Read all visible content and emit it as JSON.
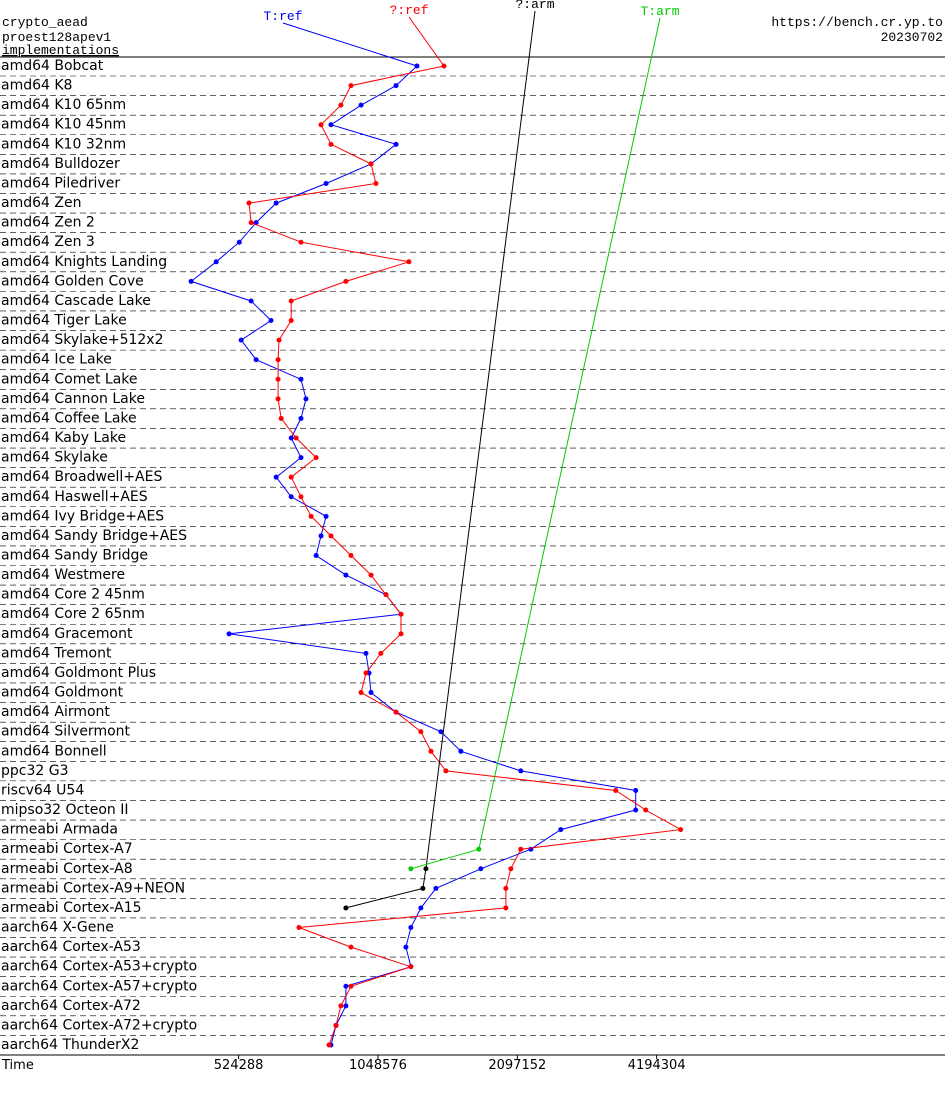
{
  "chart_data": {
    "type": "line",
    "title": "crypto_aead",
    "subtitle": "proest128apev1",
    "annotations": [
      "implementations",
      "https://bench.cr.yp.to",
      "20230702"
    ],
    "x_label": "Time",
    "xscale": "log",
    "xlim": [
      160000,
      17600000
    ],
    "xticks": [
      524288,
      1048576,
      2097152,
      4194304
    ],
    "categories": [
      "amd64 Bobcat",
      "amd64 K8",
      "amd64 K10 65nm",
      "amd64 K10 45nm",
      "amd64 K10 32nm",
      "amd64 Bulldozer",
      "amd64 Piledriver",
      "amd64 Zen",
      "amd64 Zen 2",
      "amd64 Zen 3",
      "amd64 Knights Landing",
      "amd64 Golden Cove",
      "amd64 Cascade Lake",
      "amd64 Tiger Lake",
      "amd64 Skylake+512x2",
      "amd64 Ice Lake",
      "amd64 Comet Lake",
      "amd64 Cannon Lake",
      "amd64 Coffee Lake",
      "amd64 Kaby Lake",
      "amd64 Skylake",
      "amd64 Broadwell+AES",
      "amd64 Haswell+AES",
      "amd64 Ivy Bridge+AES",
      "amd64 Sandy Bridge+AES",
      "amd64 Sandy Bridge",
      "amd64 Westmere",
      "amd64 Core 2 45nm",
      "amd64 Core 2 65nm",
      "amd64 Gracemont",
      "amd64 Tremont",
      "amd64 Goldmont Plus",
      "amd64 Goldmont",
      "amd64 Airmont",
      "amd64 Silvermont",
      "amd64 Bonnell",
      "ppc32 G3",
      "riscv64 U54",
      "mipso32 Octeon II",
      "armeabi Armada",
      "armeabi Cortex-A7",
      "armeabi Cortex-A8",
      "armeabi Cortex-A9+NEON",
      "armeabi Cortex-A15",
      "aarch64 X-Gene",
      "aarch64 Cortex-A53",
      "aarch64 Cortex-A53+crypto",
      "aarch64 Cortex-A57+crypto",
      "aarch64 Cortex-A72",
      "aarch64 Cortex-A72+crypto",
      "aarch64 ThunderX2"
    ],
    "series": [
      {
        "name": "T:ref",
        "color": "#0000ff",
        "values": [
          1273000,
          1147000,
          964000,
          830000,
          1147000,
          1013000,
          810000,
          632000,
          572000,
          526000,
          469000,
          414000,
          558000,
          616000,
          531000,
          572000,
          715000,
          733000,
          715000,
          681000,
          715000,
          632000,
          681000,
          810000,
          790000,
          771000,
          894000,
          1091000,
          1176000,
          500000,
          988000,
          1003000,
          1013000,
          1147000,
          1434000,
          1584000,
          2134000,
          3779000,
          3779000,
          2603000,
          2243000,
          1749000,
          1399000,
          1298000,
          1235000,
          1205000,
          1235000,
          894000,
          894000,
          851000,
          830000
        ]
      },
      {
        "name": "?:ref",
        "color": "#ff0000",
        "values": [
          1456000,
          917000,
          872000,
          790000,
          830000,
          1013000,
          1038000,
          552000,
          558000,
          715000,
          1223000,
          894000,
          681000,
          681000,
          641000,
          638000,
          638000,
          638000,
          648000,
          698000,
          771000,
          681000,
          715000,
          752000,
          830000,
          917000,
          1013000,
          1091000,
          1176000,
          1176000,
          1064000,
          988000,
          964000,
          1147000,
          1298000,
          1365000,
          1470000,
          3422000,
          3972000,
          4726000,
          2134000,
          2031000,
          1981000,
          1981000,
          708000,
          917000,
          1235000,
          917000,
          872000,
          851000,
          822000
        ]
      },
      {
        "name": "?:arm",
        "color": "#000000",
        "values": [
          null,
          null,
          null,
          null,
          null,
          null,
          null,
          null,
          null,
          null,
          null,
          null,
          null,
          null,
          null,
          null,
          null,
          null,
          null,
          null,
          null,
          null,
          null,
          null,
          null,
          null,
          null,
          null,
          null,
          null,
          null,
          null,
          null,
          null,
          null,
          null,
          null,
          null,
          null,
          null,
          null,
          1331000,
          1311000,
          894000,
          null,
          null,
          null,
          null,
          null,
          null,
          null
        ]
      },
      {
        "name": "T:arm",
        "color": "#00cc00",
        "values": [
          null,
          null,
          null,
          null,
          null,
          null,
          null,
          null,
          null,
          null,
          null,
          null,
          null,
          null,
          null,
          null,
          null,
          null,
          null,
          null,
          null,
          null,
          null,
          null,
          null,
          null,
          null,
          null,
          null,
          null,
          null,
          null,
          null,
          null,
          null,
          null,
          null,
          null,
          null,
          null,
          1732000,
          1235000,
          null,
          null,
          null,
          null,
          null,
          null,
          null,
          null,
          null
        ]
      }
    ]
  }
}
